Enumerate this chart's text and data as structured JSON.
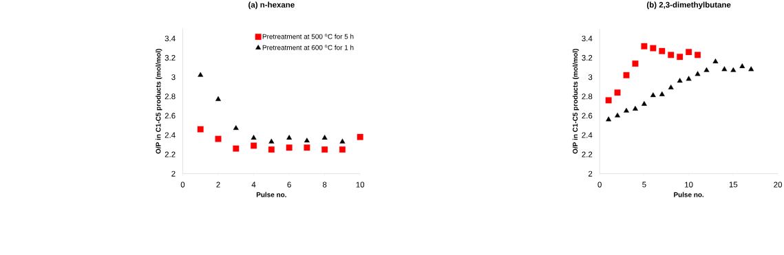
{
  "chart_data": [
    {
      "type": "scatter",
      "title": "(a) n-hexane",
      "xlabel": "Pulse no.",
      "ylabel": "O/P in C1-C5 products (mol/mol)",
      "x": [
        1,
        2,
        3,
        4,
        5,
        6,
        7,
        8,
        9,
        10
      ],
      "series": [
        {
          "name": "Pretreatment at 500 $^{o}$C for 5 h",
          "color": "#ff0000",
          "marker": "square",
          "values": [
            2.46,
            2.36,
            2.26,
            2.29,
            2.25,
            2.27,
            2.27,
            2.25,
            2.25,
            2.38
          ]
        },
        {
          "name": "Pretreatment at 600 $^{o}$C for 1 h",
          "color": "#000000",
          "marker": "triangle",
          "values": [
            3.02,
            2.77,
            2.47,
            2.37,
            2.33,
            2.37,
            2.34,
            2.37,
            2.33,
            null
          ]
        }
      ],
      "xlim": [
        0,
        10
      ],
      "xticks": [
        0,
        2,
        4,
        6,
        8,
        10
      ],
      "ylim": [
        2,
        3.5
      ],
      "yticks": [
        2,
        2.2,
        2.4,
        2.6,
        2.8,
        3,
        3.2,
        3.4
      ],
      "grid": false,
      "legend": "top right"
    },
    {
      "type": "scatter",
      "title": "(b) 2,3-dimethylbutane",
      "xlabel": "Pulse no.",
      "ylabel": "O/P in C1-C5 products (mol/mol)",
      "x": [
        1,
        2,
        3,
        4,
        5,
        6,
        7,
        8,
        9,
        10,
        11,
        12,
        13,
        14,
        15,
        16,
        17
      ],
      "series": [
        {
          "color": "#ff0000",
          "marker": "square",
          "values": [
            2.76,
            2.84,
            3.02,
            3.14,
            3.32,
            3.3,
            3.27,
            3.23,
            3.21,
            3.26,
            3.23,
            null,
            null,
            null,
            null,
            null,
            null
          ]
        },
        {
          "color": "#000000",
          "marker": "triangle",
          "values": [
            2.56,
            2.6,
            2.65,
            2.67,
            2.72,
            2.81,
            2.82,
            2.89,
            2.96,
            2.98,
            3.03,
            3.07,
            3.16,
            3.08,
            3.07,
            3.11,
            3.08
          ]
        }
      ],
      "xlim": [
        0,
        20
      ],
      "xticks": [
        0,
        5,
        10,
        15,
        20
      ],
      "ylim": [
        2,
        3.5
      ],
      "yticks": [
        2,
        2.2,
        2.4,
        2.6,
        2.8,
        3,
        3.2,
        3.4
      ],
      "grid": false,
      "legend": false
    }
  ]
}
